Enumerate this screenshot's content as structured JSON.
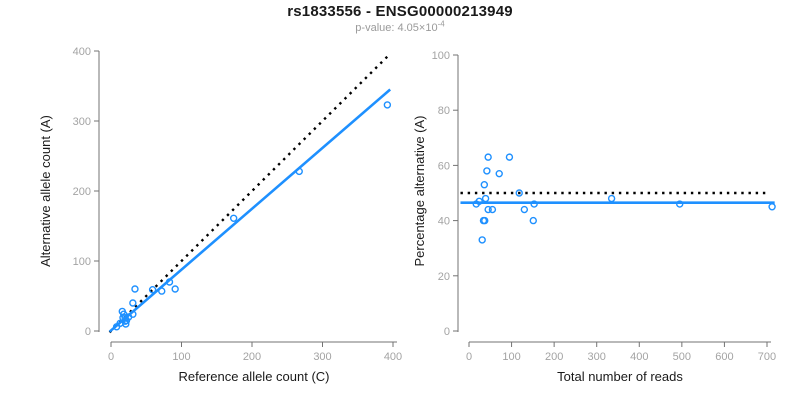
{
  "colors": {
    "accent_blue": "#1E90FF",
    "reference_black": "#000000",
    "tick_label_gray": "#a3a3a3",
    "axis_line_gray": "#737373",
    "title_black": "#1a1a1a",
    "subtitle_gray": "#9a9a9a"
  },
  "chart_data": [
    {
      "type": "scatter",
      "title": "rs1833556 - ENSG00000213949",
      "subtitle": "p-value: 4.05×10⁻⁴",
      "subtitle_base": "p-value: 4.05×10",
      "subtitle_exponent": "-4",
      "xlabel": "Reference allele count (C)",
      "ylabel": "Alternative allele count (A)",
      "xlim": [
        0,
        400
      ],
      "ylim": [
        0,
        400
      ],
      "xticks": [
        0,
        100,
        200,
        300,
        400
      ],
      "yticks": [
        0,
        100,
        200,
        300,
        400
      ],
      "grid": false,
      "legend": false,
      "points": [
        [
          8,
          6
        ],
        [
          13,
          11
        ],
        [
          21,
          10
        ],
        [
          20,
          14
        ],
        [
          22,
          15
        ],
        [
          17,
          19
        ],
        [
          20,
          19
        ],
        [
          18,
          24
        ],
        [
          16,
          28
        ],
        [
          25,
          20
        ],
        [
          31,
          24
        ],
        [
          31,
          40
        ],
        [
          34,
          60
        ],
        [
          59,
          59
        ],
        [
          72,
          57
        ],
        [
          91,
          60
        ],
        [
          83,
          70
        ],
        [
          174,
          161
        ],
        [
          267,
          228
        ],
        [
          392,
          323
        ]
      ],
      "lines": [
        {
          "name": "identity-line",
          "style": "dotted",
          "color": "#000000",
          "points": [
            [
              -2,
              -2
            ],
            [
              392,
              392
            ]
          ]
        },
        {
          "name": "regression-line",
          "style": "solid",
          "color": "#1E90FF",
          "points": [
            [
              -2,
              -1
            ],
            [
              396,
              345
            ]
          ]
        }
      ]
    },
    {
      "type": "scatter",
      "xlabel": "Total number of reads",
      "ylabel": "Percentage alternative (A)",
      "xlim": [
        0,
        720
      ],
      "ylim": [
        0,
        100
      ],
      "xticks": [
        0,
        100,
        200,
        300,
        400,
        500,
        600,
        700
      ],
      "yticks": [
        0,
        20,
        40,
        60,
        80,
        100
      ],
      "grid": false,
      "legend": false,
      "points": [
        [
          17,
          46
        ],
        [
          24,
          47
        ],
        [
          31,
          33
        ],
        [
          34,
          40
        ],
        [
          37,
          40
        ],
        [
          36,
          53
        ],
        [
          39,
          48
        ],
        [
          42,
          58
        ],
        [
          45,
          63
        ],
        [
          45,
          44
        ],
        [
          55,
          44
        ],
        [
          71,
          57
        ],
        [
          95,
          63
        ],
        [
          118,
          50
        ],
        [
          130,
          44
        ],
        [
          151,
          40
        ],
        [
          153,
          46
        ],
        [
          335,
          48
        ],
        [
          495,
          46
        ],
        [
          712,
          45
        ]
      ],
      "lines": [
        {
          "name": "reference-line-50pct",
          "style": "dotted",
          "color": "#000000",
          "points": [
            [
              -20,
              50
            ],
            [
              707,
              50
            ]
          ]
        },
        {
          "name": "mean-line",
          "style": "solid",
          "color": "#1E90FF",
          "points": [
            [
              -20,
              46.5
            ],
            [
              718,
              46.5
            ]
          ]
        }
      ]
    }
  ]
}
